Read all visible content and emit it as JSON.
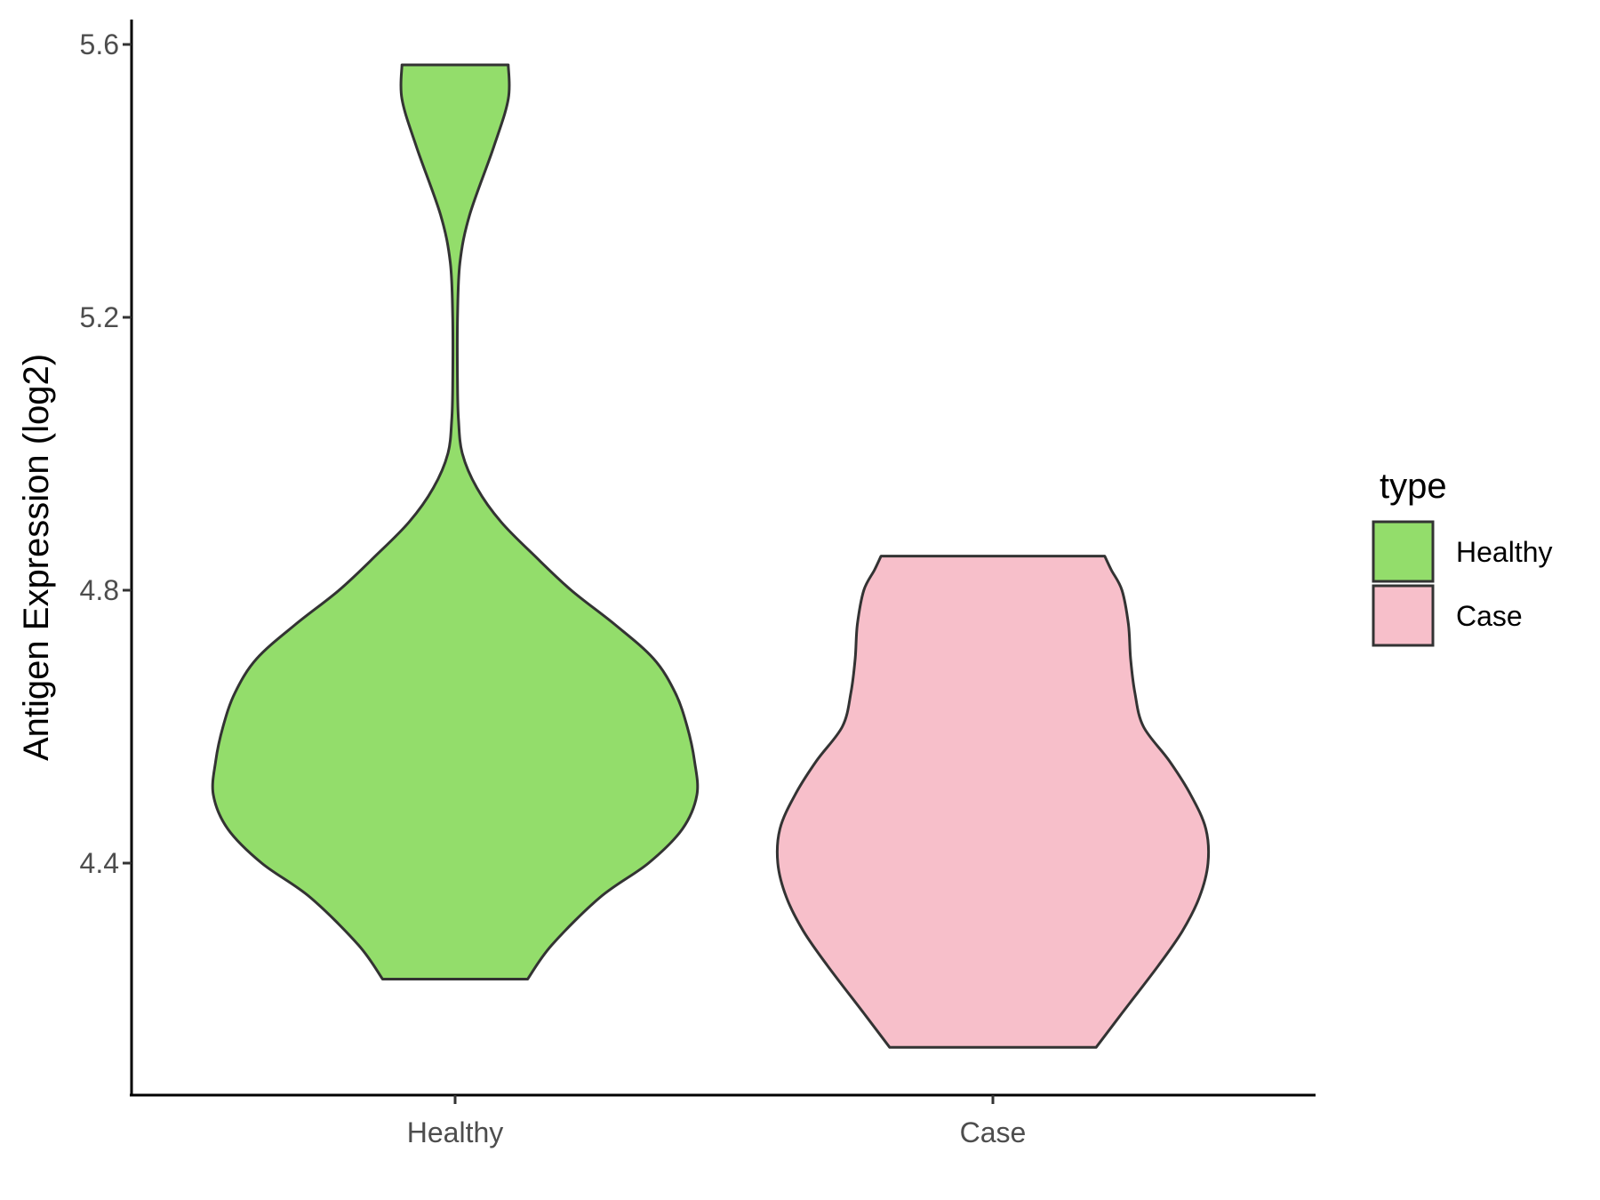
{
  "chart_data": {
    "type": "violin",
    "title": "",
    "xlabel": "",
    "ylabel": "Antigen Expression (log2)",
    "categories": [
      "Healthy",
      "Case"
    ],
    "yticks": [
      "4.4",
      "4.8",
      "5.2",
      "5.6"
    ],
    "ylim": [
      4.12,
      5.64
    ],
    "grid": false,
    "legend": {
      "title": "type",
      "position": "right",
      "entries": [
        {
          "label": "Healthy",
          "color": "#93DD6B"
        },
        {
          "label": "Case",
          "color": "#F7BFCA"
        }
      ]
    },
    "series": [
      {
        "name": "Healthy",
        "color": "#93DD6B",
        "min": 4.23,
        "max": 5.57,
        "density_profile": [
          [
            4.23,
            0.3
          ],
          [
            4.28,
            0.4
          ],
          [
            4.35,
            0.6
          ],
          [
            4.4,
            0.8
          ],
          [
            4.45,
            0.94
          ],
          [
            4.5,
            1.0
          ],
          [
            4.55,
            0.99
          ],
          [
            4.6,
            0.96
          ],
          [
            4.65,
            0.91
          ],
          [
            4.7,
            0.82
          ],
          [
            4.75,
            0.66
          ],
          [
            4.8,
            0.48
          ],
          [
            4.85,
            0.33
          ],
          [
            4.9,
            0.19
          ],
          [
            4.95,
            0.09
          ],
          [
            5.0,
            0.03
          ],
          [
            5.05,
            0.014
          ],
          [
            5.1,
            0.01
          ],
          [
            5.2,
            0.01
          ],
          [
            5.28,
            0.02
          ],
          [
            5.35,
            0.06
          ],
          [
            5.45,
            0.16
          ],
          [
            5.52,
            0.22
          ],
          [
            5.57,
            0.22
          ]
        ]
      },
      {
        "name": "Case",
        "color": "#F7BFCA",
        "min": 4.13,
        "max": 4.85,
        "density_profile": [
          [
            4.13,
            0.48
          ],
          [
            4.18,
            0.6
          ],
          [
            4.25,
            0.77
          ],
          [
            4.3,
            0.88
          ],
          [
            4.35,
            0.96
          ],
          [
            4.4,
            1.0
          ],
          [
            4.45,
            0.99
          ],
          [
            4.5,
            0.92
          ],
          [
            4.55,
            0.82
          ],
          [
            4.6,
            0.7
          ],
          [
            4.65,
            0.66
          ],
          [
            4.7,
            0.64
          ],
          [
            4.75,
            0.63
          ],
          [
            4.8,
            0.6
          ],
          [
            4.83,
            0.55
          ],
          [
            4.85,
            0.52
          ]
        ]
      }
    ]
  }
}
